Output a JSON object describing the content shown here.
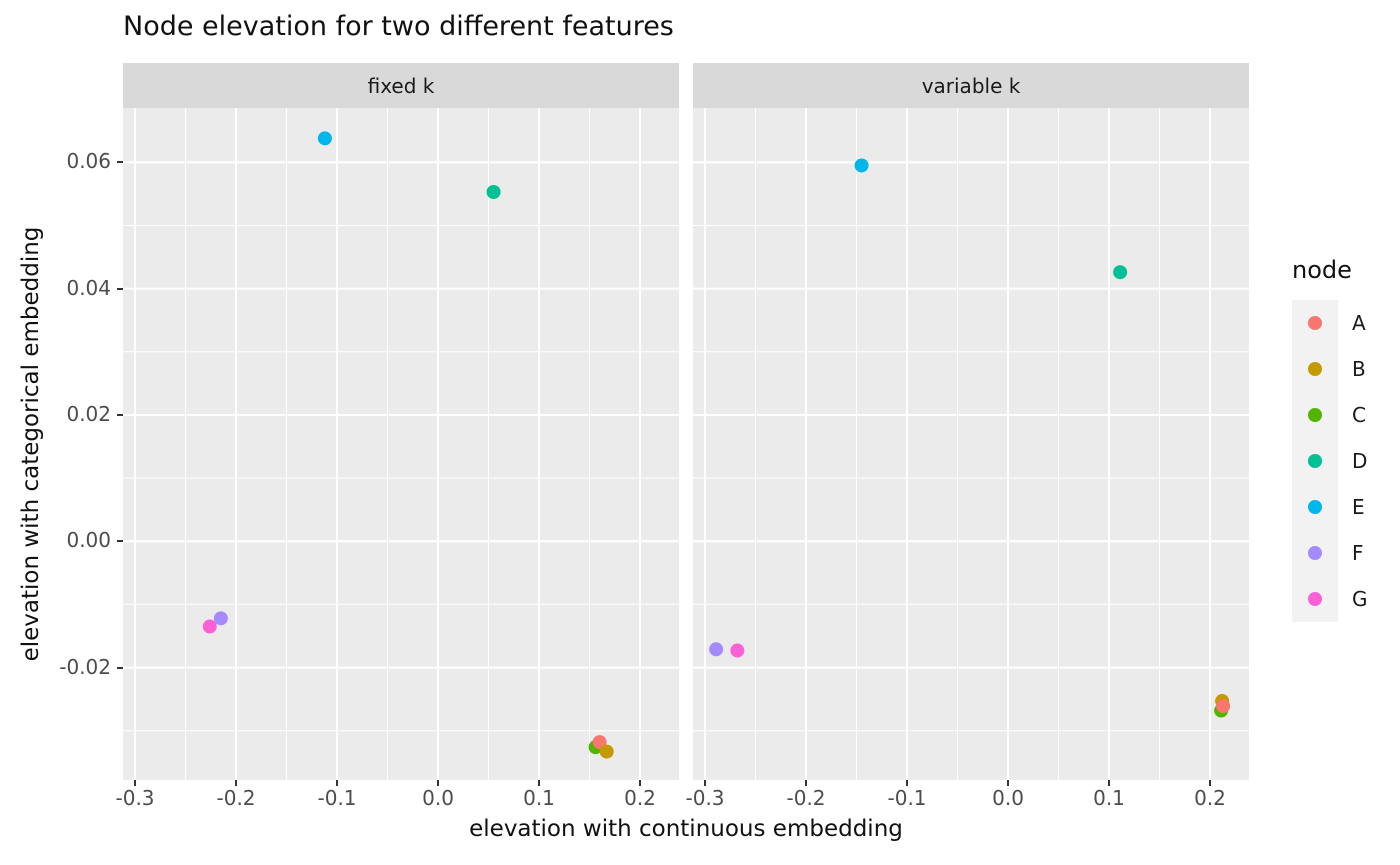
{
  "title": "Node elevation for two different features",
  "theme": {
    "background": "#FFFFFF",
    "panel_bg": "#EBEBEB",
    "strip_bg": "#D9D9D9",
    "grid_color": "#FFFFFF",
    "legend_key_bg": "#F2F2F2",
    "axis_text_color": "#4D4D4D",
    "tick_mark_color": "#333333",
    "text_color": "#1A1A1A"
  },
  "chart_data": {
    "type": "scatter",
    "title": "Node elevation for two different features",
    "xlabel": "elevation with continuous embedding",
    "ylabel": "elevation with categorical embedding",
    "facet_labels": [
      "fixed k",
      "variable k"
    ],
    "xlim": [
      -0.3119,
      0.2386
    ],
    "ylim": [
      -0.0378,
      0.0686
    ],
    "grid": true,
    "legend_position": "right",
    "x_ticks": [
      {
        "v": -0.3,
        "label": "-0.3"
      },
      {
        "v": -0.2,
        "label": "-0.2"
      },
      {
        "v": -0.1,
        "label": "-0.1"
      },
      {
        "v": 0.0,
        "label": "0.0"
      },
      {
        "v": 0.1,
        "label": "0.1"
      },
      {
        "v": 0.2,
        "label": "0.2"
      }
    ],
    "y_ticks": [
      {
        "v": 0.06,
        "label": "0.06"
      },
      {
        "v": 0.04,
        "label": "0.04"
      },
      {
        "v": 0.02,
        "label": "0.02"
      },
      {
        "v": 0.0,
        "label": "0.00"
      },
      {
        "v": -0.02,
        "label": "-0.02"
      }
    ],
    "x_minor": [
      -0.25,
      -0.15,
      -0.05,
      0.05,
      0.15
    ],
    "y_minor": [
      -0.03,
      -0.01,
      0.01,
      0.03,
      0.05
    ],
    "legend": {
      "title": "node",
      "entries": [
        {
          "label": "A",
          "color": "#F8766D"
        },
        {
          "label": "B",
          "color": "#C49A00"
        },
        {
          "label": "C",
          "color": "#53B400"
        },
        {
          "label": "D",
          "color": "#00C094"
        },
        {
          "label": "E",
          "color": "#00B6EB"
        },
        {
          "label": "F",
          "color": "#A58AFF"
        },
        {
          "label": "G",
          "color": "#FB61D7"
        }
      ]
    },
    "facets": [
      {
        "label": "fixed k",
        "points": [
          {
            "node": "D",
            "x": 0.055,
            "y": 0.0553
          },
          {
            "node": "E",
            "x": -0.112,
            "y": 0.0638
          },
          {
            "node": "F",
            "x": -0.215,
            "y": -0.0122
          },
          {
            "node": "G",
            "x": -0.226,
            "y": -0.0135
          },
          {
            "node": "C",
            "x": 0.156,
            "y": -0.0326
          },
          {
            "node": "A",
            "x": 0.16,
            "y": -0.0318
          },
          {
            "node": "B",
            "x": 0.167,
            "y": -0.0333
          }
        ]
      },
      {
        "label": "variable k",
        "points": [
          {
            "node": "D",
            "x": 0.111,
            "y": 0.0426
          },
          {
            "node": "E",
            "x": -0.145,
            "y": 0.0595
          },
          {
            "node": "F",
            "x": -0.289,
            "y": -0.0171
          },
          {
            "node": "G",
            "x": -0.268,
            "y": -0.0173
          },
          {
            "node": "C",
            "x": 0.211,
            "y": -0.0268
          },
          {
            "node": "B",
            "x": 0.212,
            "y": -0.0253
          },
          {
            "node": "A",
            "x": 0.213,
            "y": -0.0261
          }
        ]
      }
    ]
  }
}
